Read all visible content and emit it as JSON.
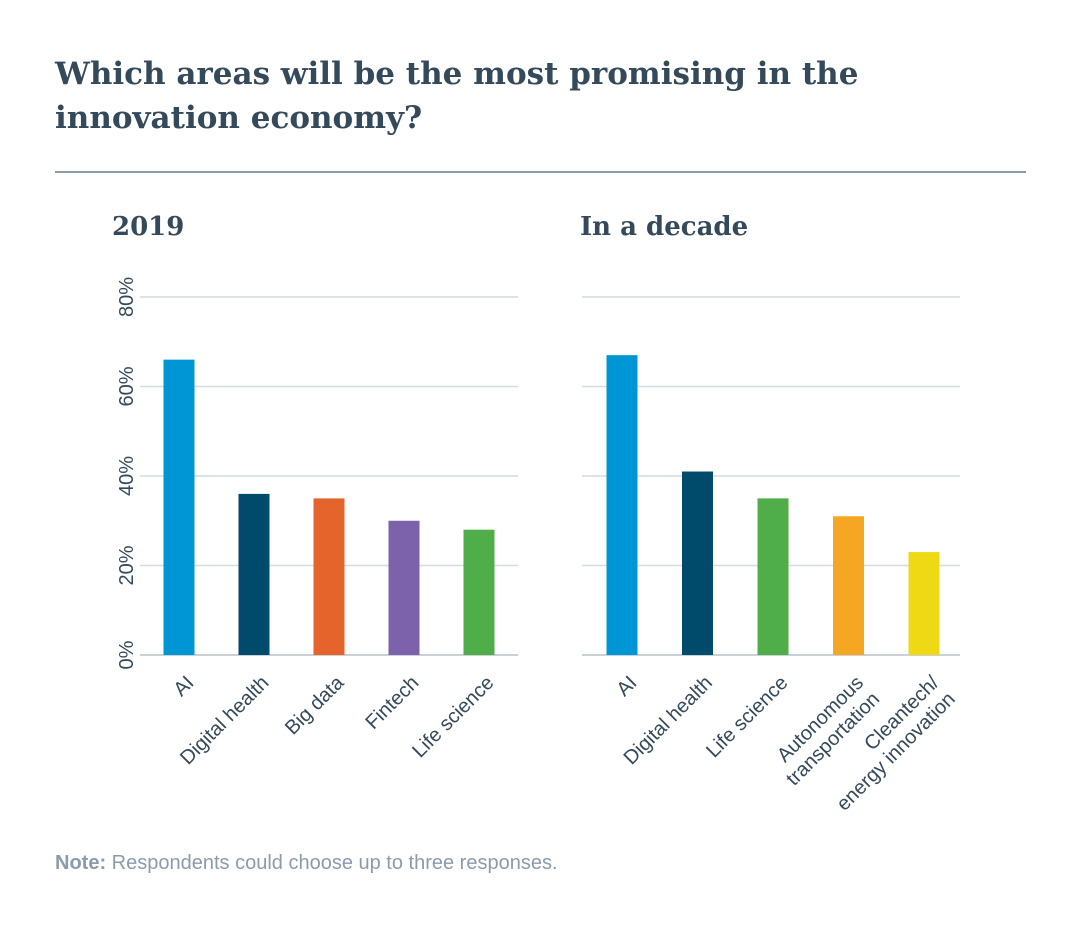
{
  "title": "Which areas will be the most promising in the innovation economy?",
  "note": {
    "label": "Note:",
    "text": " Respondents could choose up to three responses."
  },
  "chart_data": [
    {
      "type": "bar",
      "title": "2019",
      "categories": [
        "AI",
        "Digital health",
        "Big data",
        "Fintech",
        "Life science"
      ],
      "values": [
        66,
        36,
        35,
        30,
        28
      ],
      "colors": [
        "#0096d6",
        "#004a6b",
        "#e5642b",
        "#7b62ab",
        "#4fae4a"
      ],
      "ylim": [
        0,
        80
      ],
      "yticks": [
        "0%",
        "20%",
        "40%",
        "60%",
        "80%"
      ],
      "grid": true
    },
    {
      "type": "bar",
      "title": "In a decade",
      "categories": [
        "AI",
        "Digital health",
        "Life science",
        "Autonomous\ntransportation",
        "Cleantech/\nenergy innovation"
      ],
      "values": [
        67,
        41,
        35,
        31,
        23
      ],
      "colors": [
        "#0096d6",
        "#004a6b",
        "#4fae4a",
        "#f5a623",
        "#efd914"
      ],
      "ylim": [
        0,
        80
      ],
      "grid": true
    }
  ]
}
